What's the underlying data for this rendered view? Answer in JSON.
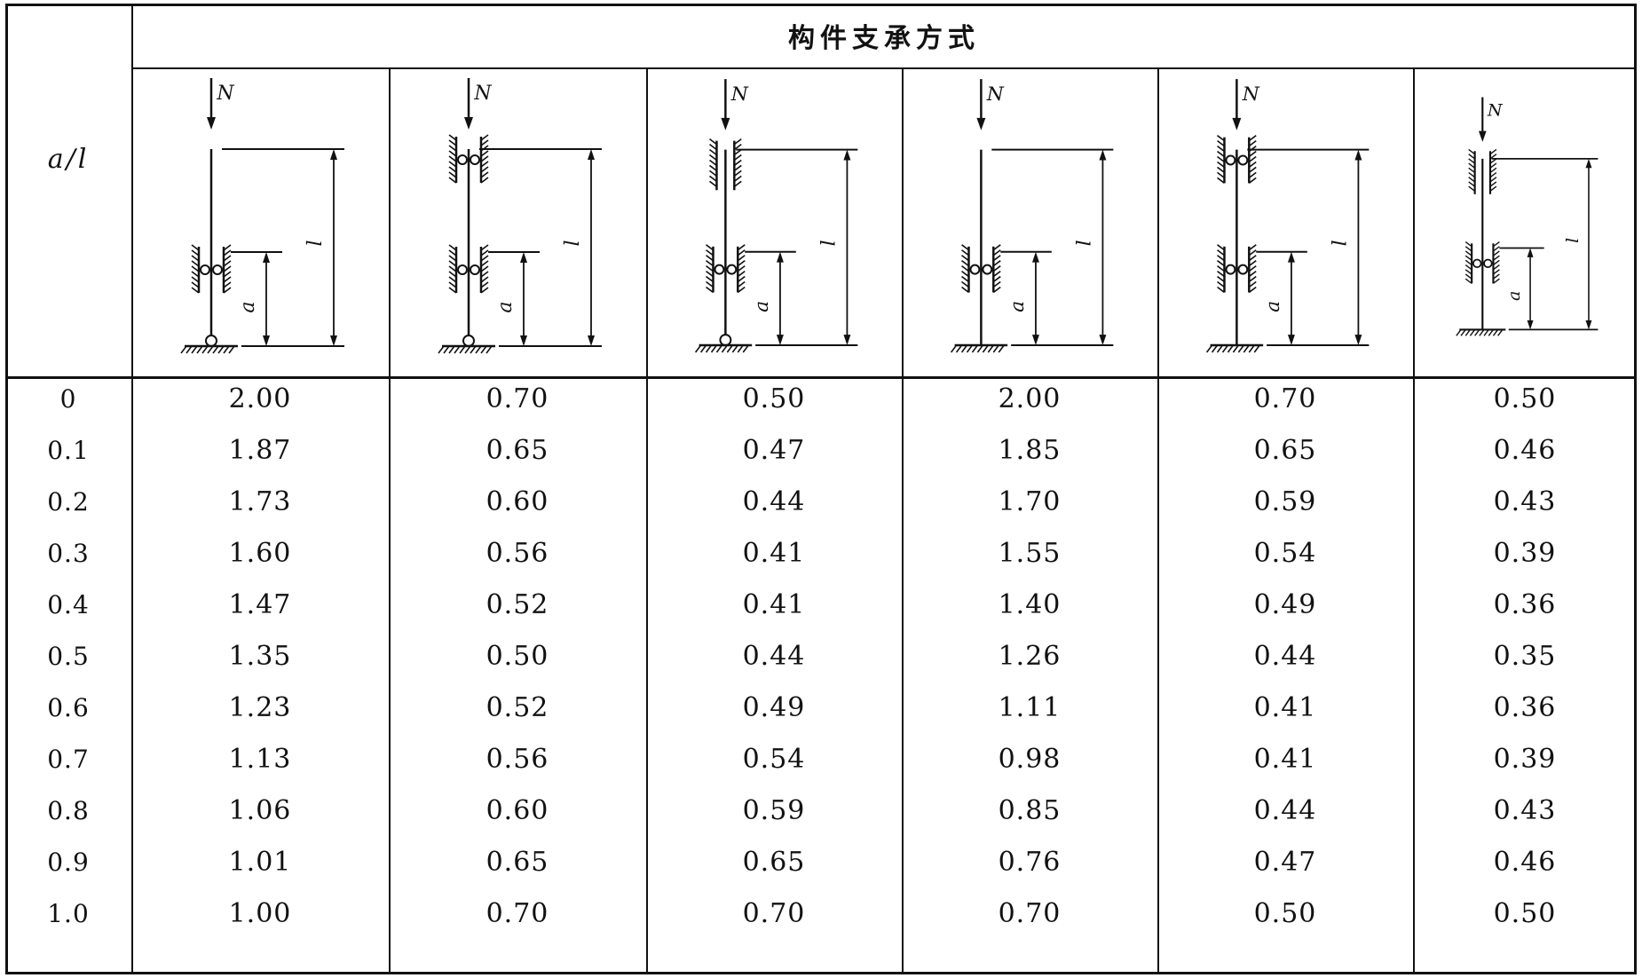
{
  "header": {
    "row_label": "a/l",
    "group_title": "构件支承方式"
  },
  "diagram_labels": {
    "load": "N",
    "length": "l",
    "distance": "a"
  },
  "diagrams": [
    {
      "name": "support-diagram-1",
      "top": "free",
      "mid": "roller",
      "bottom": "pin"
    },
    {
      "name": "support-diagram-2",
      "top": "roller",
      "mid": "roller",
      "bottom": "pin"
    },
    {
      "name": "support-diagram-3",
      "top": "guide",
      "mid": "roller",
      "bottom": "pin"
    },
    {
      "name": "support-diagram-4",
      "top": "free",
      "mid": "roller",
      "bottom": "fixed"
    },
    {
      "name": "support-diagram-5",
      "top": "roller",
      "mid": "roller",
      "bottom": "fixed"
    },
    {
      "name": "support-diagram-6",
      "top": "guide",
      "mid": "roller",
      "bottom": "fixed"
    }
  ],
  "rows": [
    {
      "al": "0",
      "values": [
        "2.00",
        "0.70",
        "0.50",
        "2.00",
        "0.70",
        "0.50"
      ]
    },
    {
      "al": "0.1",
      "values": [
        "1.87",
        "0.65",
        "0.47",
        "1.85",
        "0.65",
        "0.46"
      ]
    },
    {
      "al": "0.2",
      "values": [
        "1.73",
        "0.60",
        "0.44",
        "1.70",
        "0.59",
        "0.43"
      ]
    },
    {
      "al": "0.3",
      "values": [
        "1.60",
        "0.56",
        "0.41",
        "1.55",
        "0.54",
        "0.39"
      ]
    },
    {
      "al": "0.4",
      "values": [
        "1.47",
        "0.52",
        "0.41",
        "1.40",
        "0.49",
        "0.36"
      ]
    },
    {
      "al": "0.5",
      "values": [
        "1.35",
        "0.50",
        "0.44",
        "1.26",
        "0.44",
        "0.35"
      ]
    },
    {
      "al": "0.6",
      "values": [
        "1.23",
        "0.52",
        "0.49",
        "1.11",
        "0.41",
        "0.36"
      ]
    },
    {
      "al": "0.7",
      "values": [
        "1.13",
        "0.56",
        "0.54",
        "0.98",
        "0.41",
        "0.39"
      ]
    },
    {
      "al": "0.8",
      "values": [
        "1.06",
        "0.60",
        "0.59",
        "0.85",
        "0.44",
        "0.43"
      ]
    },
    {
      "al": "0.9",
      "values": [
        "1.01",
        "0.65",
        "0.65",
        "0.76",
        "0.47",
        "0.46"
      ]
    },
    {
      "al": "1.0",
      "values": [
        "1.00",
        "0.70",
        "0.70",
        "0.70",
        "0.50",
        "0.50"
      ]
    }
  ]
}
